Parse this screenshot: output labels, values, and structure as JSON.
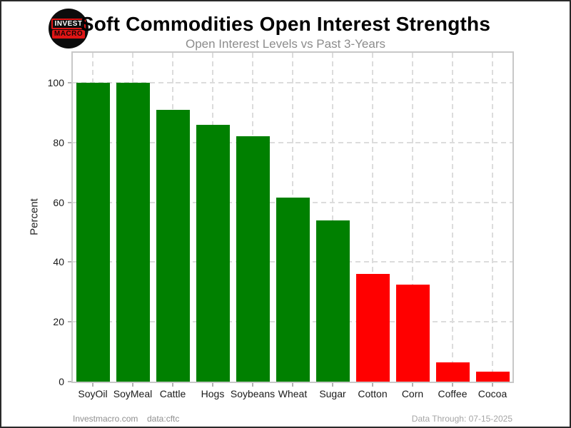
{
  "header": {
    "logo_line1": "INVEST",
    "logo_line2": "MACRO"
  },
  "chart_data": {
    "type": "bar",
    "title": "Soft Commodities Open Interest Strengths",
    "subtitle": "Open Interest Levels vs Past 3-Years",
    "categories": [
      "SoyOil",
      "SoyMeal",
      "Cattle",
      "Hogs",
      "Soybeans",
      "Wheat",
      "Sugar",
      "Cotton",
      "Corn",
      "Coffee",
      "Cocoa"
    ],
    "values": [
      100,
      100,
      91,
      86,
      82,
      61.5,
      54,
      36,
      32.5,
      6.5,
      3.3
    ],
    "colors": [
      "#008000",
      "#008000",
      "#008000",
      "#008000",
      "#008000",
      "#008000",
      "#008000",
      "#ff0000",
      "#ff0000",
      "#ff0000",
      "#ff0000"
    ],
    "positive_color": "#008000",
    "negative_color": "#ff0000",
    "xlabel": "",
    "ylabel": "Percent",
    "yticks": [
      0,
      20,
      40,
      60,
      80,
      100
    ],
    "ylim": [
      0,
      110
    ],
    "grid": true,
    "legend_position": "none"
  },
  "footer": {
    "site": "Investmacro.com",
    "source": "data:cftc",
    "data_through": "Data Through: 07-15-2025"
  }
}
